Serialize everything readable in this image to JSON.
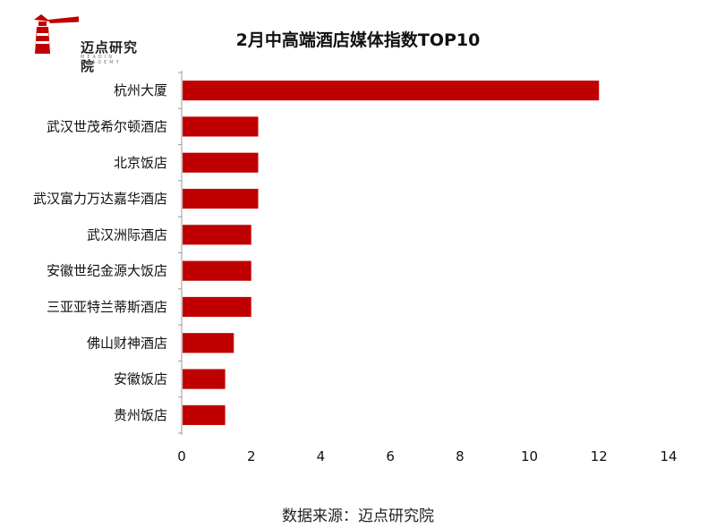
{
  "header": {
    "logo_text": "迈点研究院",
    "logo_subtext": "MEADIN ACADEMY",
    "brand_color": "#c00000"
  },
  "chart_data": {
    "type": "bar",
    "orientation": "horizontal",
    "title": "2月中高端酒店媒体指数TOP10",
    "categories": [
      "杭州大厦",
      "武汉世茂希尔顿酒店",
      "北京饭店",
      "武汉富力万达嘉华酒店",
      "武汉洲际酒店",
      "安徽世纪金源大饭店",
      "三亚亚特兰蒂斯酒店",
      "佛山财神酒店",
      "安徽饭店",
      "贵州饭店"
    ],
    "values": [
      12.0,
      2.2,
      2.2,
      2.2,
      2.0,
      2.0,
      2.0,
      1.5,
      1.25,
      1.25
    ],
    "xlim": [
      0,
      14
    ],
    "xticks": [
      0,
      2,
      4,
      6,
      8,
      10,
      12,
      14
    ],
    "bar_color": "#c00000",
    "grid": false,
    "xlabel": "",
    "ylabel": ""
  },
  "footer": {
    "source": "数据来源：迈点研究院"
  }
}
